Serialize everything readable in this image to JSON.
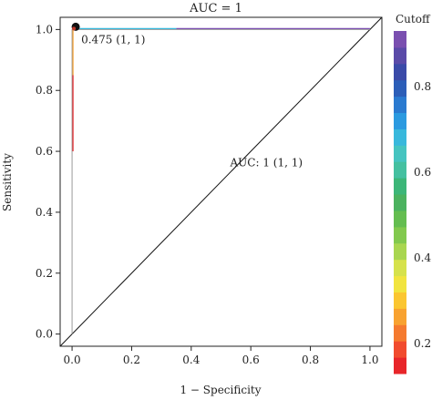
{
  "chart_data": {
    "type": "line",
    "title": "AUC = 1",
    "xlabel": "1 − Specificity",
    "ylabel": "Sensitivity",
    "xlim": [
      -0.04,
      1.04
    ],
    "ylim": [
      -0.04,
      1.04
    ],
    "x_ticks": [
      "0.0",
      "0.2",
      "0.4",
      "0.6",
      "0.8",
      "1.0"
    ],
    "y_ticks": [
      "0.0",
      "0.2",
      "0.4",
      "0.6",
      "0.8",
      "1.0"
    ],
    "roc_curve": {
      "points": [
        [
          0,
          0
        ],
        [
          0,
          0.6
        ],
        [
          0,
          1.0
        ],
        [
          1.0,
          1.0
        ]
      ],
      "colormap": "rainbow-by-cutoff"
    },
    "diagonal": {
      "points": [
        [
          -0.04,
          -0.04
        ],
        [
          1.04,
          1.04
        ]
      ],
      "color": "#000000"
    },
    "best_threshold": {
      "x": 0.0,
      "y": 1.0,
      "label": "0.475 (1, 1)"
    },
    "auc_annotation": {
      "text": "AUC: 1 (1, 1)",
      "x": 0.5,
      "y": 0.5
    },
    "grid": false,
    "legend": "none",
    "colorbar": {
      "title": "Cutoff",
      "range": [
        0.13,
        0.93
      ],
      "ticks": [
        "0.2",
        "0.4",
        "0.6",
        "0.8"
      ],
      "tick_values": [
        0.2,
        0.4,
        0.6,
        0.8
      ],
      "colors": [
        "#e8262a",
        "#f14b2e",
        "#f57a2f",
        "#f8a230",
        "#fbc631",
        "#f1e43f",
        "#d6e24c",
        "#a9d650",
        "#82c94e",
        "#64bd50",
        "#4bb25f",
        "#3cb678",
        "#44c0a0",
        "#45c4c0",
        "#38b8dc",
        "#2b9ae0",
        "#2a7ad0",
        "#2c5eb8",
        "#3a4aa8",
        "#5a4aa8",
        "#7a4fb0"
      ]
    }
  }
}
